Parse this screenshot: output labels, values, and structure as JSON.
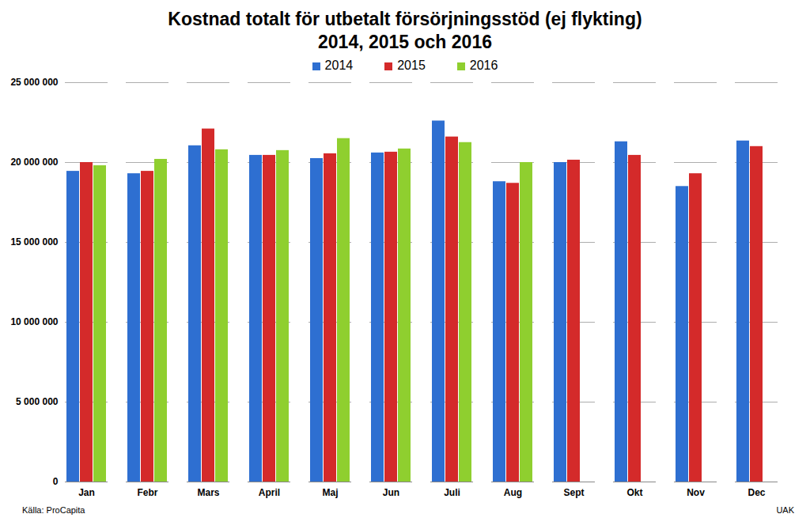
{
  "chart_data": {
    "type": "bar",
    "title": "Kostnad totalt för utbetalt försörjningsstöd (ej flykting)",
    "subtitle": "2014, 2015 och 2016",
    "categories": [
      "Jan",
      "Febr",
      "Mars",
      "April",
      "Maj",
      "Jun",
      "Juli",
      "Aug",
      "Sept",
      "Okt",
      "Nov",
      "Dec"
    ],
    "series": [
      {
        "name": "2014",
        "color": "#2e6fd1",
        "values": [
          19450000,
          19300000,
          21050000,
          20450000,
          20250000,
          20600000,
          22600000,
          18800000,
          20000000,
          21300000,
          18500000,
          21350000
        ]
      },
      {
        "name": "2015",
        "color": "#d42a2a",
        "values": [
          20000000,
          19450000,
          22100000,
          20450000,
          20550000,
          20650000,
          21600000,
          18700000,
          20150000,
          20450000,
          19300000,
          21000000
        ]
      },
      {
        "name": "2016",
        "color": "#8fcf2f",
        "values": [
          19800000,
          20200000,
          20800000,
          20750000,
          21500000,
          20850000,
          21250000,
          20000000,
          null,
          null,
          null,
          null
        ]
      }
    ],
    "ylim": [
      0,
      25000000
    ],
    "yticks": [
      0,
      {
        "value": 5000000,
        "label": "5 000 000"
      },
      {
        "value": 10000000,
        "label": "10 000 000"
      },
      {
        "value": 15000000,
        "label": "15 000 000"
      },
      {
        "value": 20000000,
        "label": "20 000 000"
      },
      {
        "value": 25000000,
        "label": "25 000 000"
      }
    ],
    "grid": true,
    "legend": "top",
    "annotations": [
      "Källa: ProCapita",
      "UAK"
    ]
  }
}
